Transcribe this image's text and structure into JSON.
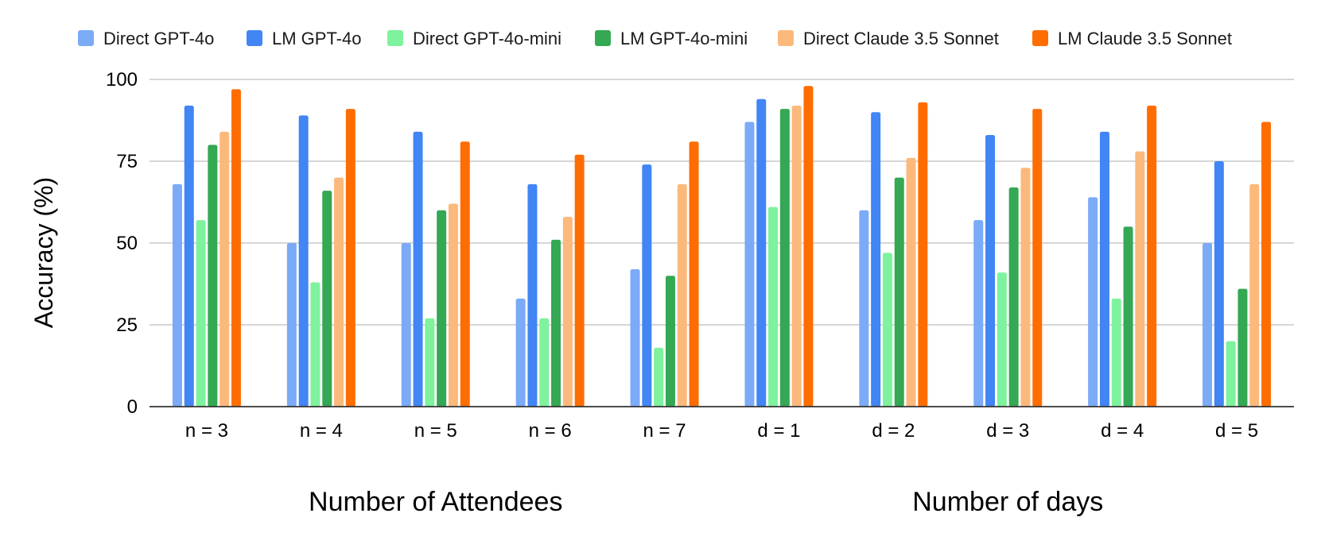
{
  "chart_data": {
    "type": "bar",
    "title": "",
    "ylabel": "Accuracy (%)",
    "ylim": [
      0,
      100
    ],
    "yticks": [
      0,
      25,
      50,
      75,
      100
    ],
    "grid": true,
    "legend_position": "top",
    "categories": [
      "n = 3",
      "n = 4",
      "n = 5",
      "n = 6",
      "n = 7",
      "d = 1",
      "d = 2",
      "d = 3",
      "d = 4",
      "d = 5"
    ],
    "group_labels": [
      {
        "label": "Number of Attendees",
        "categories": [
          "n = 3",
          "n = 4",
          "n = 5",
          "n = 6",
          "n = 7"
        ]
      },
      {
        "label": "Number of days",
        "categories": [
          "d = 1",
          "d = 2",
          "d = 3",
          "d = 4",
          "d = 5"
        ]
      }
    ],
    "series": [
      {
        "name": "Direct GPT-4o",
        "color": "#7baaf7",
        "values": [
          68,
          50,
          50,
          33,
          42,
          87,
          60,
          57,
          64,
          50
        ]
      },
      {
        "name": "LM GPT-4o",
        "color": "#4285f4",
        "values": [
          92,
          89,
          84,
          68,
          74,
          94,
          90,
          83,
          84,
          75
        ]
      },
      {
        "name": "Direct GPT-4o-mini",
        "color": "#7ef29d",
        "values": [
          57,
          38,
          27,
          27,
          18,
          61,
          47,
          41,
          33,
          20
        ]
      },
      {
        "name": "LM GPT-4o-mini",
        "color": "#34a853",
        "values": [
          80,
          66,
          60,
          51,
          40,
          91,
          70,
          67,
          55,
          36
        ]
      },
      {
        "name": "Direct Claude 3.5 Sonnet",
        "color": "#fcb97c",
        "values": [
          84,
          70,
          62,
          58,
          68,
          92,
          76,
          73,
          78,
          68
        ]
      },
      {
        "name": "LM Claude 3.5 Sonnet",
        "color": "#ff6d01",
        "values": [
          97,
          91,
          81,
          77,
          81,
          98,
          93,
          91,
          92,
          87
        ]
      }
    ]
  }
}
